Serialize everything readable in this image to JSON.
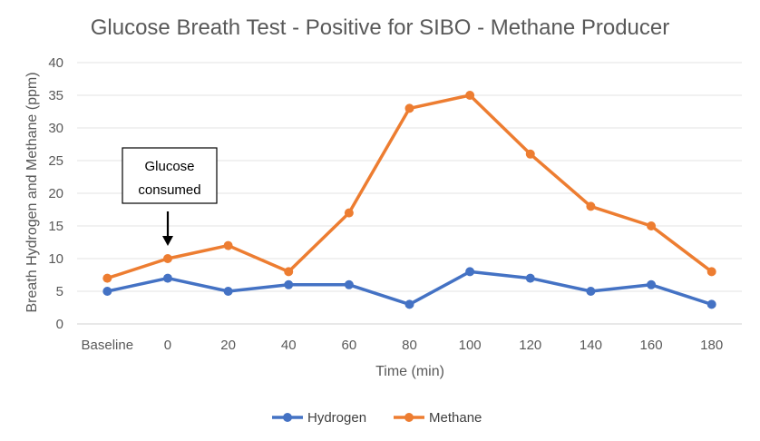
{
  "chart_data": {
    "type": "line",
    "title": "Glucose Breath Test - Positive for SIBO - Methane Producer",
    "xlabel": "Time (min)",
    "ylabel": "Breath Hydrogen and Methane (ppm)",
    "categories": [
      "Baseline",
      "0",
      "20",
      "40",
      "60",
      "80",
      "100",
      "120",
      "140",
      "160",
      "180"
    ],
    "ylim": [
      0,
      40
    ],
    "yticks": [
      0,
      5,
      10,
      15,
      20,
      25,
      30,
      35,
      40
    ],
    "grid": true,
    "legend": "bottom",
    "series": [
      {
        "name": "Hydrogen",
        "color": "#4472C4",
        "values": [
          5,
          7,
          5,
          6,
          6,
          3,
          8,
          7,
          5,
          6,
          3
        ]
      },
      {
        "name": "Methane",
        "color": "#ED7D31",
        "values": [
          7,
          10,
          12,
          8,
          17,
          33,
          35,
          26,
          18,
          15,
          8
        ]
      }
    ],
    "annotation": {
      "lines": [
        "Glucose",
        "consumed"
      ],
      "category": "0"
    }
  }
}
